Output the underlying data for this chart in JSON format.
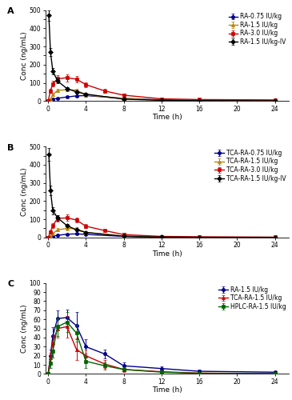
{
  "panel_A": {
    "title": "A",
    "ylabel": "Conc (ng/mL)",
    "xlabel": "Time (h)",
    "ylim": [
      0,
      500
    ],
    "yticks": [
      0,
      50,
      100,
      150,
      200,
      250,
      300,
      350,
      400,
      450,
      500
    ],
    "xticks": [
      0,
      4,
      8,
      12,
      16,
      20,
      24
    ],
    "xlim": [
      -0.3,
      25.5
    ],
    "series": [
      {
        "label": "RA-0.75 IU/kg",
        "color": "#00008B",
        "marker": "o",
        "x": [
          0,
          0.25,
          0.5,
          1,
          2,
          3,
          4,
          8,
          12,
          16,
          24
        ],
        "y": [
          0,
          5,
          10,
          15,
          22,
          28,
          30,
          14,
          6,
          3,
          1
        ],
        "yerr": [
          0,
          2,
          3,
          3,
          5,
          5,
          5,
          3,
          2,
          1,
          0.5
        ]
      },
      {
        "label": "RA-1.5 IU/kg",
        "color": "#B8860B",
        "marker": "^",
        "x": [
          0,
          0.25,
          0.5,
          1,
          2,
          3,
          4,
          8,
          12,
          16,
          24
        ],
        "y": [
          0,
          10,
          35,
          58,
          62,
          60,
          33,
          14,
          4,
          2,
          1
        ],
        "yerr": [
          0,
          3,
          7,
          10,
          10,
          8,
          7,
          3,
          1.5,
          1,
          0.5
        ]
      },
      {
        "label": "RA-3.0 IU/kg",
        "color": "#CC0000",
        "marker": "^",
        "x": [
          0,
          0.25,
          0.5,
          1,
          2,
          3,
          4,
          6,
          8,
          12,
          16,
          24
        ],
        "y": [
          0,
          55,
          95,
          122,
          128,
          120,
          90,
          55,
          32,
          12,
          8,
          6
        ],
        "yerr": [
          0,
          10,
          15,
          20,
          20,
          18,
          14,
          10,
          7,
          3,
          2,
          1.5
        ]
      },
      {
        "label": "RA-1.5 IU/kg-IV",
        "color": "#000000",
        "marker": "^",
        "x": [
          0.08,
          0.25,
          0.5,
          1,
          2,
          3,
          4,
          8,
          12,
          16,
          24
        ],
        "y": [
          470,
          270,
          165,
          110,
          68,
          50,
          38,
          10,
          4,
          2,
          1
        ],
        "yerr": [
          30,
          22,
          18,
          14,
          10,
          8,
          6,
          2.5,
          1.5,
          1,
          0.5
        ]
      }
    ]
  },
  "panel_B": {
    "title": "B",
    "ylabel": "Conc (ng/mL)",
    "xlabel": "Time (h)",
    "ylim": [
      0,
      500
    ],
    "yticks": [
      0,
      50,
      100,
      150,
      200,
      250,
      300,
      350,
      400,
      450,
      500
    ],
    "xticks": [
      0,
      4,
      8,
      12,
      16,
      20,
      24
    ],
    "xlim": [
      -0.3,
      25.5
    ],
    "series": [
      {
        "label": "TCA-RA-0.75 IU/kg",
        "color": "#00008B",
        "marker": "o",
        "x": [
          0,
          0.25,
          0.5,
          1,
          2,
          3,
          4,
          8,
          12,
          16,
          24
        ],
        "y": [
          0,
          3,
          7,
          12,
          18,
          20,
          17,
          6,
          2,
          1,
          0.5
        ],
        "yerr": [
          0,
          1,
          2,
          3,
          4,
          4,
          3,
          2,
          0.8,
          0.4,
          0.2
        ]
      },
      {
        "label": "TCA-RA-1.5 IU/kg",
        "color": "#B8860B",
        "marker": "^",
        "x": [
          0,
          0.25,
          0.5,
          1,
          2,
          3,
          4,
          8,
          12,
          16,
          24
        ],
        "y": [
          0,
          7,
          22,
          42,
          50,
          48,
          28,
          8,
          2,
          0.8,
          0.4
        ],
        "yerr": [
          0,
          2,
          5,
          8,
          9,
          8,
          5,
          2.5,
          0.8,
          0.4,
          0.2
        ]
      },
      {
        "label": "TCA-RA-3.0 IU/kg",
        "color": "#CC0000",
        "marker": "^",
        "x": [
          0,
          0.25,
          0.5,
          1,
          2,
          3,
          4,
          6,
          8,
          12,
          16,
          24
        ],
        "y": [
          0,
          32,
          65,
          105,
          108,
          96,
          62,
          38,
          16,
          6,
          4,
          2
        ],
        "yerr": [
          0,
          8,
          12,
          18,
          18,
          15,
          10,
          7,
          4,
          2,
          1.5,
          0.8
        ]
      },
      {
        "label": "TCA-RA-1.5 IU/kg-IV",
        "color": "#000000",
        "marker": "^",
        "x": [
          0.08,
          0.25,
          0.5,
          1,
          2,
          3,
          4,
          8,
          12,
          16,
          24
        ],
        "y": [
          455,
          258,
          148,
          108,
          65,
          42,
          28,
          7,
          2,
          0.8,
          0.4
        ],
        "yerr": [
          35,
          25,
          20,
          16,
          10,
          7,
          5,
          2,
          1,
          0.4,
          0.2
        ]
      }
    ]
  },
  "panel_C": {
    "title": "C",
    "ylabel": "Conc (ng/mL)",
    "xlabel": "Time (h)",
    "ylim": [
      0,
      100
    ],
    "yticks": [
      0,
      10,
      20,
      30,
      40,
      50,
      60,
      70,
      80,
      90,
      100
    ],
    "xticks": [
      0,
      4,
      8,
      12,
      16,
      20,
      24
    ],
    "xlim": [
      -0.3,
      25.5
    ],
    "series": [
      {
        "label": "RA-1.5 IU/kg",
        "color": "#00008B",
        "marker": "o",
        "x": [
          0,
          0.25,
          0.5,
          1,
          2,
          3,
          4,
          6,
          8,
          12,
          16,
          24
        ],
        "y": [
          0,
          20,
          42,
          61,
          62,
          53,
          30,
          22,
          9,
          6,
          3,
          2
        ],
        "yerr": [
          0,
          7,
          9,
          9,
          9,
          15,
          8,
          5,
          4,
          2,
          1.5,
          1
        ]
      },
      {
        "label": "TCA-RA-1.5 IU/kg",
        "color": "#CC0000",
        "marker": "^",
        "x": [
          0,
          0.25,
          0.5,
          1,
          2,
          3,
          4,
          6,
          8,
          12,
          16,
          24
        ],
        "y": [
          0,
          18,
          35,
          50,
          52,
          27,
          20,
          11,
          5,
          2.5,
          1,
          0.5
        ],
        "yerr": [
          0,
          5,
          8,
          10,
          12,
          12,
          7,
          4,
          2.5,
          1.5,
          0.7,
          0.3
        ]
      },
      {
        "label": "HPLC-RA-1.5 IU/kg",
        "color": "#006400",
        "marker": "^",
        "x": [
          0,
          0.25,
          0.5,
          1,
          2,
          3,
          4,
          6,
          8,
          12,
          16,
          24
        ],
        "y": [
          0,
          12,
          25,
          52,
          57,
          45,
          14,
          9,
          5,
          2,
          0.8,
          0.4
        ],
        "yerr": [
          0,
          5,
          7,
          10,
          11,
          9,
          7,
          4,
          2,
          1,
          0.5,
          0.2
        ]
      }
    ]
  },
  "figure_bg": "#FFFFFF",
  "axes_bg": "#FFFFFF",
  "line_width": 1.0,
  "marker_size": 3.0,
  "label_font_size": 6.5,
  "legend_font_size": 5.5,
  "tick_font_size": 5.5,
  "panel_label_fontsize": 8
}
